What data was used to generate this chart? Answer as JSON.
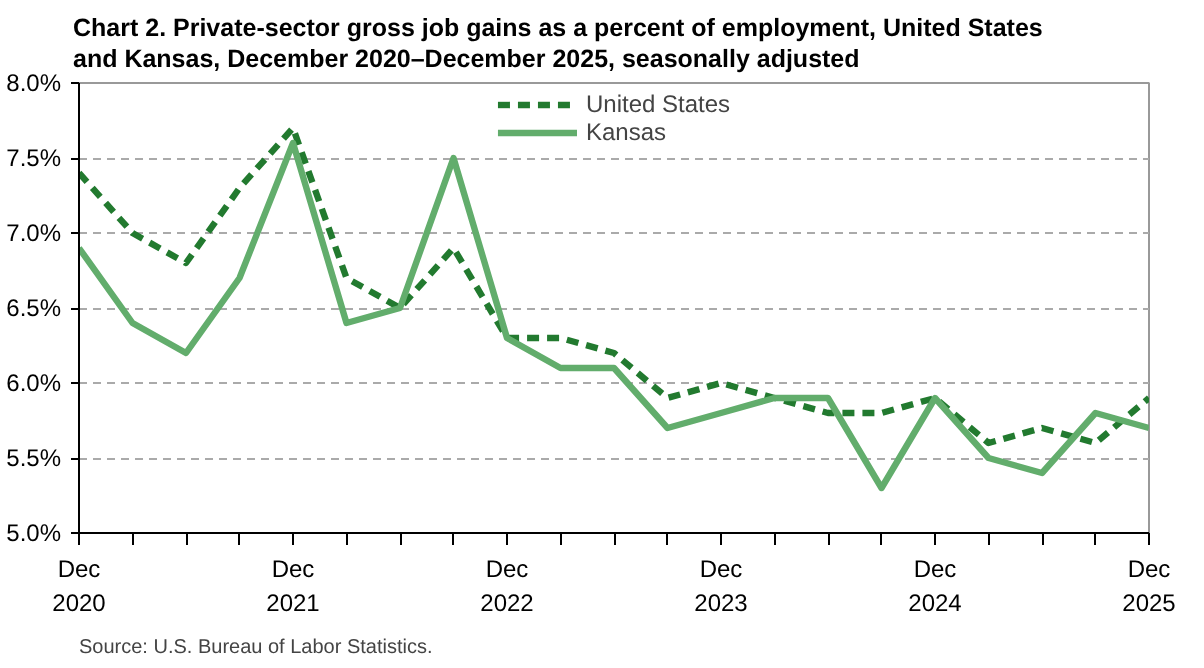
{
  "chart_data": {
    "type": "line",
    "title": "Chart 2. Private-sector gross job gains as a percent of employment, United States and Kansas, December 2020–December 2025, seasonally adjusted",
    "categories": [
      "Dec\n2020",
      null,
      null,
      null,
      "Dec\n2021",
      null,
      null,
      null,
      "Dec\n2022",
      null,
      null,
      null,
      "Dec\n2023",
      null,
      null,
      null,
      "Dec\n2024",
      null,
      null,
      null,
      "Dec\n2025"
    ],
    "series": [
      {
        "name": "United States",
        "color": "#227a2f",
        "line_style": "dashed",
        "values": [
          7.4,
          7.0,
          6.8,
          7.3,
          7.7,
          6.7,
          6.5,
          6.9,
          6.3,
          6.3,
          6.2,
          5.9,
          6.0,
          5.9,
          5.8,
          5.8,
          5.9,
          5.6,
          5.7,
          5.6,
          5.9
        ]
      },
      {
        "name": "Kansas",
        "color": "#62ad6c",
        "line_style": "solid",
        "values": [
          6.9,
          6.4,
          6.2,
          6.7,
          7.6,
          6.4,
          6.5,
          7.5,
          6.3,
          6.1,
          6.1,
          5.7,
          5.8,
          5.9,
          5.9,
          5.3,
          5.9,
          5.5,
          5.4,
          5.8,
          5.7
        ]
      }
    ],
    "ylim": [
      5.0,
      8.0
    ],
    "yticks": [
      {
        "value": 5.0,
        "label": "5.0%"
      },
      {
        "value": 5.5,
        "label": "5.5%"
      },
      {
        "value": 6.0,
        "label": "6.0%"
      },
      {
        "value": 6.5,
        "label": "6.5%"
      },
      {
        "value": 7.0,
        "label": "7.0%"
      },
      {
        "value": 7.5,
        "label": "7.5%"
      },
      {
        "value": 8.0,
        "label": "8.0%"
      }
    ],
    "grid": "y",
    "legend": "top",
    "marker": "none",
    "annotations": [
      "Source: U.S. Bureau of Labor Statistics."
    ]
  }
}
